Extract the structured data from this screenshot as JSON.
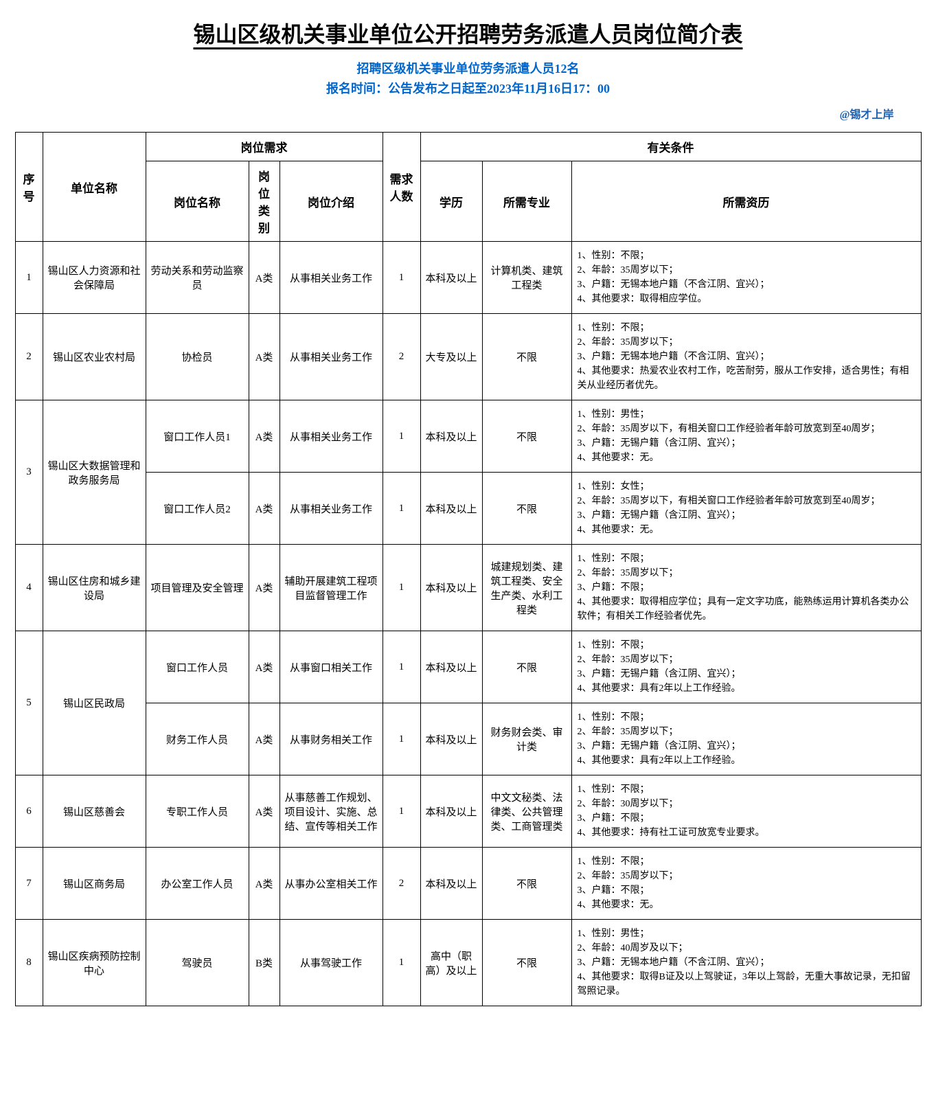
{
  "page_title": "锡山区级机关事业单位公开招聘劳务派遣人员岗位简介表",
  "subtitle": "招聘区级机关事业单位劳务派遣人员12名",
  "deadline": "报名时间：公告发布之日起至2023年11月16日17：00",
  "watermark": "@锡才上岸",
  "headers": {
    "seq": "序号",
    "unit": "单位名称",
    "job_req": "岗位需求",
    "job_name": "岗位名称",
    "job_type": "岗位类别",
    "job_desc": "岗位介绍",
    "count": "需求人数",
    "conditions": "有关条件",
    "edu": "学历",
    "major": "所需专业",
    "qual": "所需资历"
  },
  "rows": [
    {
      "seq": "1",
      "unit": "锡山区人力资源和社会保障局",
      "unit_rowspan": 1,
      "job_name": "劳动关系和劳动监察员",
      "job_type": "A类",
      "job_desc": "从事相关业务工作",
      "count": "1",
      "edu": "本科及以上",
      "major": "计算机类、建筑工程类",
      "qual": "1、性别：不限；\n2、年龄：35周岁以下；\n3、户籍：无锡本地户籍（不含江阴、宜兴）；\n4、其他要求：取得相应学位。"
    },
    {
      "seq": "2",
      "unit": "锡山区农业农村局",
      "unit_rowspan": 1,
      "job_name": "协检员",
      "job_type": "A类",
      "job_desc": "从事相关业务工作",
      "count": "2",
      "edu": "大专及以上",
      "major": "不限",
      "qual": "1、性别：不限；\n2、年龄：35周岁以下；\n3、户籍：无锡本地户籍（不含江阴、宜兴）；\n4、其他要求：热爱农业农村工作，吃苦耐劳，服从工作安排，适合男性；有相关从业经历者优先。"
    },
    {
      "seq": "3",
      "unit": "锡山区大数据管理和政务服务局",
      "unit_rowspan": 2,
      "job_name": "窗口工作人员1",
      "job_type": "A类",
      "job_desc": "从事相关业务工作",
      "count": "1",
      "edu": "本科及以上",
      "major": "不限",
      "qual": "1、性别：男性；\n2、年龄：35周岁以下，有相关窗口工作经验者年龄可放宽到至40周岁；\n3、户籍：无锡户籍（含江阴、宜兴）；\n4、其他要求：无。"
    },
    {
      "seq": "",
      "unit": "",
      "unit_rowspan": 0,
      "job_name": "窗口工作人员2",
      "job_type": "A类",
      "job_desc": "从事相关业务工作",
      "count": "1",
      "edu": "本科及以上",
      "major": "不限",
      "qual": "1、性别：女性；\n2、年龄：35周岁以下，有相关窗口工作经验者年龄可放宽到至40周岁；\n3、户籍：无锡户籍（含江阴、宜兴）；\n4、其他要求：无。"
    },
    {
      "seq": "4",
      "unit": "锡山区住房和城乡建设局",
      "unit_rowspan": 1,
      "job_name": "项目管理及安全管理",
      "job_type": "A类",
      "job_desc": "辅助开展建筑工程项目监督管理工作",
      "count": "1",
      "edu": "本科及以上",
      "major": "城建规划类、建筑工程类、安全生产类、水利工程类",
      "qual": "1、性别：不限；\n2、年龄：35周岁以下；\n3、户籍：不限；\n4、其他要求：取得相应学位；具有一定文字功底，能熟练运用计算机各类办公软件；有相关工作经验者优先。"
    },
    {
      "seq": "5",
      "unit": "锡山区民政局",
      "unit_rowspan": 2,
      "job_name": "窗口工作人员",
      "job_type": "A类",
      "job_desc": "从事窗口相关工作",
      "count": "1",
      "edu": "本科及以上",
      "major": "不限",
      "qual": "1、性别：不限；\n2、年龄：35周岁以下；\n3、户籍：无锡户籍（含江阴、宜兴）；\n4、其他要求：具有2年以上工作经验。"
    },
    {
      "seq": "",
      "unit": "",
      "unit_rowspan": 0,
      "job_name": "财务工作人员",
      "job_type": "A类",
      "job_desc": "从事财务相关工作",
      "count": "1",
      "edu": "本科及以上",
      "major": "财务财会类、审计类",
      "qual": "1、性别：不限；\n2、年龄：35周岁以下；\n3、户籍：无锡户籍（含江阴、宜兴）；\n4、其他要求：具有2年以上工作经验。"
    },
    {
      "seq": "6",
      "unit": "锡山区慈善会",
      "unit_rowspan": 1,
      "job_name": "专职工作人员",
      "job_type": "A类",
      "job_desc": "从事慈善工作规划、项目设计、实施、总结、宣传等相关工作",
      "count": "1",
      "edu": "本科及以上",
      "major": "中文文秘类、法律类、公共管理类、工商管理类",
      "qual": "1、性别：不限；\n2、年龄：30周岁以下；\n3、户籍：不限；\n4、其他要求：持有社工证可放宽专业要求。"
    },
    {
      "seq": "7",
      "unit": "锡山区商务局",
      "unit_rowspan": 1,
      "job_name": "办公室工作人员",
      "job_type": "A类",
      "job_desc": "从事办公室相关工作",
      "count": "2",
      "edu": "本科及以上",
      "major": "不限",
      "qual": "1、性别：不限；\n2、年龄：35周岁以下；\n3、户籍：不限；\n4、其他要求：无。"
    },
    {
      "seq": "8",
      "unit": "锡山区疾病预防控制中心",
      "unit_rowspan": 1,
      "job_name": "驾驶员",
      "job_type": "B类",
      "job_desc": "从事驾驶工作",
      "count": "1",
      "edu": "高中（职高）及以上",
      "major": "不限",
      "qual": "1、性别：男性；\n2、年龄：40周岁及以下；\n3、户籍：无锡本地户籍（不含江阴、宜兴）；\n4、其他要求：取得B证及以上驾驶证，3年以上驾龄，无重大事故记录，无扣留驾照记录。"
    }
  ]
}
